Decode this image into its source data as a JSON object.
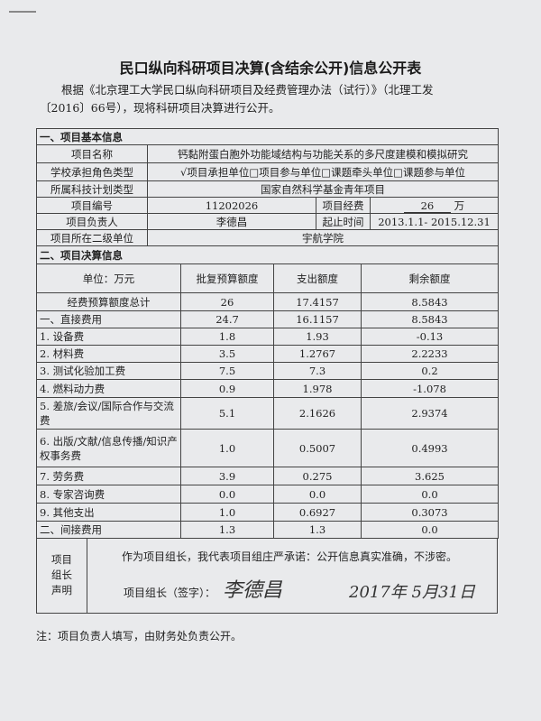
{
  "title": "民口纵向科研项目决算(含结余公开)信息公开表",
  "intro": "根据《北京理工大学民口纵向科研项目及经费管理办法（试行）》（北理工发〔2016〕66号），现将科研项目决算进行公开。",
  "basic": {
    "section": "一、项目基本信息",
    "name_label": "项目名称",
    "name": "钙黏附蛋白胞外功能域结构与功能关系的多尺度建模和模拟研究",
    "role_label": "学校承担角色类型",
    "role": "√项目承担单位□项目参与单位□课题牵头单位□课题参与单位",
    "plan_label": "所属科技计划类型",
    "plan": "国家自然科学基金青年项目",
    "id_label": "项目编号",
    "id": "11202026",
    "fund_label": "项目经费",
    "fund": "26",
    "fund_unit": "万",
    "leader_label": "项目负责人",
    "leader": "李德昌",
    "period_label": "起止时间",
    "period": "2013.1.1- 2015.12.31",
    "unit_label": "项目所在二级单位",
    "unit": "宇航学院"
  },
  "budget": {
    "section": "二、项目决算信息",
    "headers": [
      "单位：万元",
      "批复预算额度",
      "支出额度",
      "剩余额度"
    ],
    "rows": [
      [
        "经费预算额度总计",
        "26",
        "17.4157",
        "8.5843"
      ],
      [
        "一、直接费用",
        "24.7",
        "16.1157",
        "8.5843"
      ],
      [
        "1. 设备费",
        "1.8",
        "1.93",
        "-0.13"
      ],
      [
        "2. 材料费",
        "3.5",
        "1.2767",
        "2.2233"
      ],
      [
        "3. 测试化验加工费",
        "7.5",
        "7.3",
        "0.2"
      ],
      [
        "4. 燃料动力费",
        "0.9",
        "1.978",
        "-1.078"
      ],
      [
        "5. 差旅/会议/国际合作与交流费",
        "5.1",
        "2.1626",
        "2.9374"
      ],
      [
        "6. 出版/文献/信息传播/知识产权事务费",
        "1.0",
        "0.5007",
        "0.4993"
      ],
      [
        "7. 劳务费",
        "3.9",
        "0.275",
        "3.625"
      ],
      [
        "8. 专家咨询费",
        "0.0",
        "0.0",
        "0.0"
      ],
      [
        "9. 其他支出",
        "1.0",
        "0.6927",
        "0.3073"
      ],
      [
        "二、间接费用",
        "1.3",
        "1.3",
        "0.0"
      ]
    ]
  },
  "declaration": {
    "label": "项目组长声明",
    "statement": "作为项目组长，我代表项目组庄严承诺：公开信息真实准确，不涉密。",
    "sign_label": "项目组长（签字）：",
    "signature": "李德昌",
    "date": "2017年 5月31日"
  },
  "note": "注：项目负责人填写，由财务处负责公开。"
}
